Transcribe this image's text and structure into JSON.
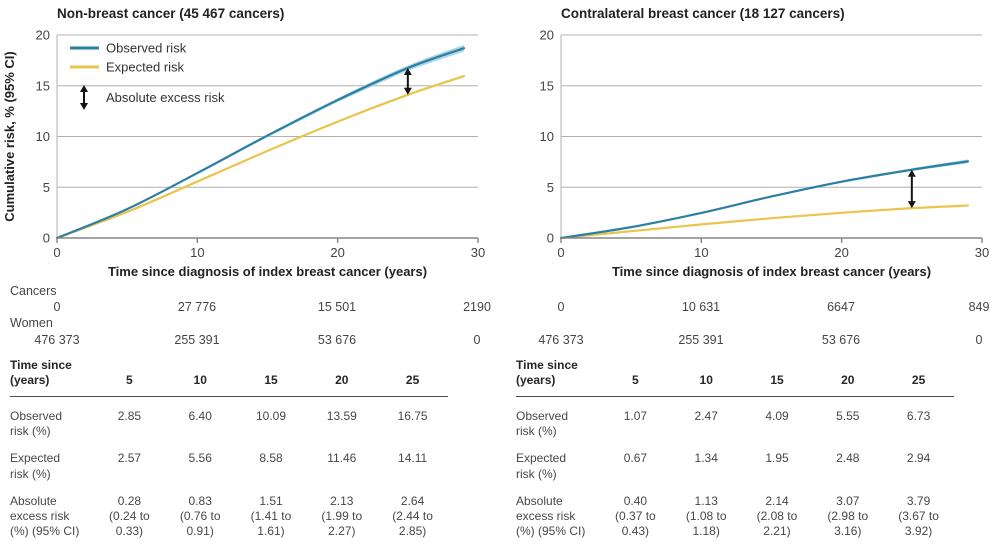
{
  "figure": {
    "y_axis_label": "Cumulative risk, % (95% CI)",
    "x_axis_label": "Time since diagnosis of index breast cancer (years)",
    "legend": {
      "observed": "Observed risk",
      "expected": "Expected risk",
      "excess": "Absolute excess risk"
    },
    "colors": {
      "observed": "#2b7fa3",
      "observed_ci": "#aed6e8",
      "expected": "#ebc44d",
      "expected_ci": "#f6e8bc",
      "arrow": "#141414",
      "grid": "#b0b0b0",
      "axis": "#858585",
      "title_text": "#222222",
      "tick_text": "#444444"
    }
  },
  "chart_data": [
    {
      "type": "line",
      "title": "Non-breast cancer (45 467 cancers)",
      "xlabel": "Time since diagnosis of index breast cancer (years)",
      "ylabel": "Cumulative risk, % (95% CI)",
      "xlim": [
        0,
        30
      ],
      "ylim": [
        0,
        20
      ],
      "xticks": [
        0,
        10,
        20,
        30
      ],
      "yticks": [
        0,
        5,
        10,
        15,
        20
      ],
      "grid": "horizontal-only",
      "show_legend": true,
      "legend_position": "top-left",
      "x": [
        0,
        5,
        10,
        15,
        20,
        25,
        29
      ],
      "series": [
        {
          "name": "Observed risk",
          "color_key": "observed",
          "values": [
            0,
            2.85,
            6.4,
            10.09,
            13.59,
            16.75,
            18.7
          ],
          "ci_halfwidth": [
            0.02,
            0.06,
            0.1,
            0.14,
            0.18,
            0.25,
            0.33
          ]
        },
        {
          "name": "Expected risk",
          "color_key": "expected",
          "values": [
            0,
            2.57,
            5.56,
            8.58,
            11.46,
            14.11,
            15.95
          ],
          "ci_halfwidth": [
            0.01,
            0.03,
            0.05,
            0.07,
            0.09,
            0.11,
            0.14
          ]
        }
      ],
      "excess_arrow": {
        "x": 25,
        "from": 14.11,
        "to": 16.75,
        "label": "Absolute excess risk"
      }
    },
    {
      "type": "line",
      "title": "Contralateral breast cancer (18 127 cancers)",
      "xlabel": "Time since diagnosis of index breast cancer (years)",
      "ylabel": "",
      "xlim": [
        0,
        30
      ],
      "ylim": [
        0,
        20
      ],
      "xticks": [
        0,
        10,
        20,
        30
      ],
      "yticks": [
        0,
        5,
        10,
        15,
        20
      ],
      "grid": "horizontal-only",
      "show_legend": false,
      "x": [
        0,
        5,
        10,
        15,
        20,
        25,
        29
      ],
      "series": [
        {
          "name": "Observed risk",
          "color_key": "observed",
          "values": [
            0,
            1.07,
            2.47,
            4.09,
            5.55,
            6.73,
            7.55
          ],
          "ci_halfwidth": [
            0.01,
            0.03,
            0.05,
            0.07,
            0.09,
            0.13,
            0.18
          ]
        },
        {
          "name": "Expected risk",
          "color_key": "expected",
          "values": [
            0,
            0.67,
            1.34,
            1.95,
            2.48,
            2.94,
            3.2
          ],
          "ci_halfwidth": [
            0.01,
            0.02,
            0.03,
            0.04,
            0.05,
            0.06,
            0.08
          ]
        }
      ],
      "excess_arrow": {
        "x": 25,
        "from": 2.94,
        "to": 6.73,
        "label": "Absolute excess risk"
      }
    }
  ],
  "at_risk": {
    "cancers_label": "Cancers",
    "women_label": "Women",
    "left": {
      "cancers": [
        "0",
        "27 776",
        "15 501",
        "2190"
      ],
      "women": [
        "476 373",
        "255 391",
        "53 676",
        "0"
      ]
    },
    "right": {
      "cancers": [
        "0",
        "10 631",
        "6647",
        "849"
      ],
      "women": [
        "476 373",
        "255 391",
        "53 676",
        "0"
      ]
    }
  },
  "tables": {
    "header_label": [
      "Time since",
      "(years)"
    ],
    "columns": [
      "5",
      "10",
      "15",
      "20",
      "25"
    ],
    "observed_label": [
      "Observed",
      "risk (%)"
    ],
    "expected_label": [
      "Expected",
      "risk (%)"
    ],
    "excess_label": [
      "Absolute",
      "excess risk",
      "(%) (95% CI)"
    ],
    "left": {
      "observed": [
        "2.85",
        "6.40",
        "10.09",
        "13.59",
        "16.75"
      ],
      "expected": [
        "2.57",
        "5.56",
        "8.58",
        "11.46",
        "14.11"
      ],
      "excess": [
        {
          "value": "0.28",
          "ci": "(0.24 to 0.33)"
        },
        {
          "value": "0.83",
          "ci": "(0.76 to 0.91)"
        },
        {
          "value": "1.51",
          "ci": "(1.41 to 1.61)"
        },
        {
          "value": "2.13",
          "ci": "(1.99 to 2.27)"
        },
        {
          "value": "2.64",
          "ci": "(2.44 to 2.85)"
        }
      ]
    },
    "right": {
      "observed": [
        "1.07",
        "2.47",
        "4.09",
        "5.55",
        "6.73"
      ],
      "expected": [
        "0.67",
        "1.34",
        "1.95",
        "2.48",
        "2.94"
      ],
      "excess": [
        {
          "value": "0.40",
          "ci": "(0.37 to 0.43)"
        },
        {
          "value": "1.13",
          "ci": "(1.08 to 1.18)"
        },
        {
          "value": "2.14",
          "ci": "(2.08 to 2.21)"
        },
        {
          "value": "3.07",
          "ci": "(2.98 to 3.16)"
        },
        {
          "value": "3.79",
          "ci": "(3.67 to 3.92)"
        }
      ]
    }
  }
}
